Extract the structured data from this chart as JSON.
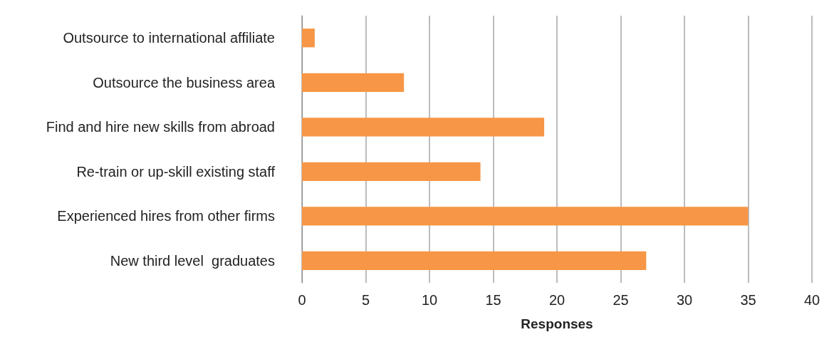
{
  "chart_data": {
    "type": "bar",
    "orientation": "horizontal",
    "xlabel": "Responses",
    "categories": [
      "Outsource to international affiliate",
      "Outsource the business area",
      "Find and hire new skills from abroad",
      "Re-train or up-skill existing staff",
      "Experienced hires from other firms",
      "New third level  graduates"
    ],
    "values": [
      1,
      8,
      19,
      14,
      35,
      27
    ],
    "color": "#f79646",
    "xlim": [
      0,
      40
    ],
    "xticks": [
      0,
      5,
      10,
      15,
      20,
      25,
      30,
      35,
      40
    ],
    "grid": "x"
  }
}
